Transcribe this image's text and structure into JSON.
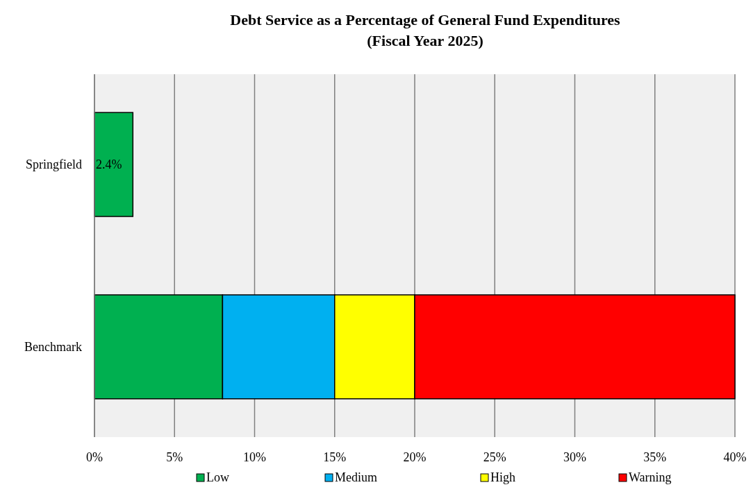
{
  "chart_data": {
    "type": "bar",
    "orientation": "horizontal",
    "stacked": true,
    "title": "Debt Service as a Percentage of General Fund Expenditures\n(Fiscal Year 2025)",
    "categories": [
      "Springfield",
      "Benchmark"
    ],
    "series": [
      {
        "name": "Low",
        "color": "#00b050",
        "values": [
          2.4,
          8
        ],
        "value_labels": [
          "2.4%",
          null
        ]
      },
      {
        "name": "Medium",
        "color": "#00b0f0",
        "values": [
          null,
          7
        ]
      },
      {
        "name": "High",
        "color": "#ffff00",
        "values": [
          null,
          5
        ]
      },
      {
        "name": "Warning",
        "color": "#ff0000",
        "values": [
          null,
          20
        ]
      }
    ],
    "xlim": [
      0,
      40
    ],
    "xticks": [
      {
        "value": 0,
        "label": "0%"
      },
      {
        "value": 5,
        "label": "5%"
      },
      {
        "value": 10,
        "label": "10%"
      },
      {
        "value": 15,
        "label": "15%"
      },
      {
        "value": 20,
        "label": "20%"
      },
      {
        "value": 25,
        "label": "25%"
      },
      {
        "value": 30,
        "label": "30%"
      },
      {
        "value": 35,
        "label": "35%"
      },
      {
        "value": 40,
        "label": "40%"
      }
    ],
    "grid": "x",
    "legend": "bottom"
  }
}
